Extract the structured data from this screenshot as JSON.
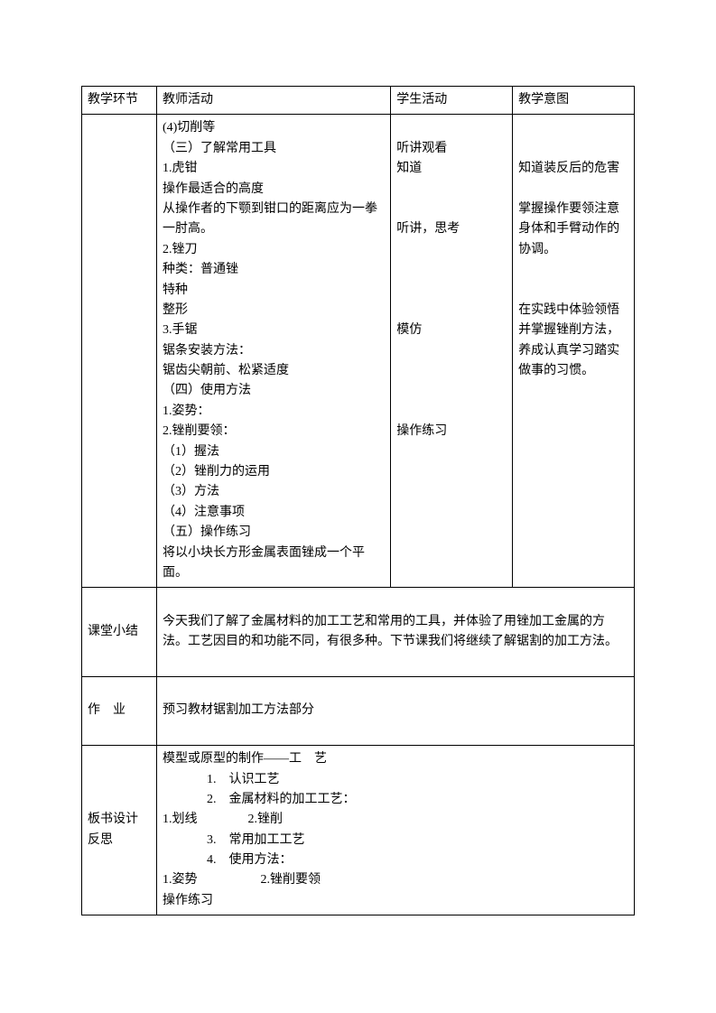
{
  "headers": {
    "col1": "教学环节",
    "col2": "教师活动",
    "col3": "学生活动",
    "col4": "教学意图"
  },
  "mainRow": {
    "teacher": {
      "l1": "(4)切削等",
      "l2": "（三）了解常用工具",
      "l3": "1.虎钳",
      "l4": "操作最适合的高度",
      "l5": "从操作者的下颚到钳口的距离应为一拳一肘高。",
      "l6": "2.锉刀",
      "l7": "种类：普通锉",
      "l8": "特种",
      "l9": "整形",
      "l10": "3.手锯",
      "l11": "锯条安装方法：",
      "l12": "锯齿尖朝前、松紧适度",
      "l13": "（四）使用方法",
      "l14": "1.姿势：",
      "l15": "2.锉削要领：",
      "l16": "（1）握法",
      "l17": "（2）锉削力的运用",
      "l18": "（3）方法",
      "l19": "（4）注意事项",
      "l20": "（五）操作练习",
      "l21": "将以小块长方形金属表面锉成一个平面。"
    },
    "student": {
      "s1": "",
      "s2": "听讲观看",
      "s3": "知道",
      "s4": "",
      "s5a": "",
      "s5b": "听讲，思考",
      "s6": "",
      "s7": "",
      "s8": "",
      "s9": "",
      "s10": "模仿",
      "s11": "",
      "s12": "",
      "s13": "",
      "s14": "",
      "s15": "操作练习",
      "s16": "",
      "s17": "",
      "s18": "",
      "s19": "",
      "s20": "",
      "s21": ""
    },
    "intent": {
      "i1": "",
      "i2": "",
      "i3": "知道装反后的危害",
      "i4": "",
      "i5a": "",
      "i5b": "掌握操作要领注意身体和手臂动作的协调。",
      "i6": "",
      "i7": "",
      "i8": "",
      "i9": "",
      "i10": "",
      "i11": "在实践中体验领悟并掌握锉削方法，养成认真学习踏实做事的习惯。",
      "i12": "",
      "i13": "",
      "i14": "",
      "i15": "",
      "i16": "",
      "i17": "",
      "i18": "",
      "i19": "",
      "i20": "",
      "i21": ""
    }
  },
  "summary": {
    "label": "课堂小结",
    "content": "今天我们了解了金属材料的加工工艺和常用的工具，并体验了用锉加工金属的方法。工艺因目的和功能不同，有很多种。下节课我们将继续了解锯割的加工方法。"
  },
  "homework": {
    "label": "作　业",
    "content": "预习教材锯割加工方法部分"
  },
  "board": {
    "label": "板书设计反思",
    "l1": "模型或原型的制作——工　艺",
    "l2": "1.　认识工艺",
    "l3": "2.　金属材料的加工工艺：",
    "l4": "1.划线　　　　2.锉削",
    "l5": "3.　常用加工工艺",
    "l6": "4.　使用方法：",
    "l7": "1.姿势　　　　　2.锉削要领",
    "l8": "操作练习"
  }
}
